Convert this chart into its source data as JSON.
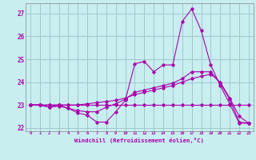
{
  "title": "",
  "xlabel": "Windchill (Refroidissement éolien,°C)",
  "ylabel": "",
  "bg_color": "#c8eef0",
  "grid_color": "#a0c8cc",
  "line_color": "#aa00aa",
  "xlim": [
    -0.5,
    23.5
  ],
  "ylim": [
    21.85,
    27.45
  ],
  "yticks": [
    22,
    23,
    24,
    25,
    26,
    27
  ],
  "xticks": [
    0,
    1,
    2,
    3,
    4,
    5,
    6,
    7,
    8,
    9,
    10,
    11,
    12,
    13,
    14,
    15,
    16,
    17,
    18,
    19,
    20,
    21,
    22,
    23
  ],
  "lines": [
    {
      "x": [
        0,
        1,
        2,
        3,
        4,
        5,
        6,
        7,
        8,
        9,
        10,
        11,
        12,
        13,
        14,
        15,
        16,
        17,
        18,
        19,
        20,
        21,
        22,
        23
      ],
      "y": [
        23.0,
        23.0,
        22.9,
        23.0,
        22.85,
        22.65,
        22.55,
        22.25,
        22.25,
        22.7,
        23.2,
        24.8,
        24.9,
        24.45,
        24.75,
        24.75,
        26.65,
        27.2,
        26.25,
        24.75,
        23.85,
        23.05,
        22.2,
        22.2
      ]
    },
    {
      "x": [
        0,
        1,
        2,
        3,
        4,
        5,
        6,
        7,
        8,
        9,
        10,
        11,
        12,
        13,
        14,
        15,
        16,
        17,
        18,
        19,
        20,
        21,
        22,
        23
      ],
      "y": [
        23.0,
        23.0,
        22.9,
        22.95,
        22.85,
        22.75,
        22.7,
        22.7,
        22.9,
        23.05,
        23.25,
        23.55,
        23.65,
        23.75,
        23.85,
        23.95,
        24.15,
        24.45,
        24.45,
        24.45,
        23.95,
        23.25,
        22.25,
        22.2
      ]
    },
    {
      "x": [
        0,
        1,
        2,
        3,
        4,
        5,
        6,
        7,
        8,
        9,
        10,
        11,
        12,
        13,
        14,
        15,
        16,
        17,
        18,
        19,
        20,
        21,
        22,
        23
      ],
      "y": [
        23.0,
        23.0,
        23.0,
        23.0,
        23.0,
        23.0,
        23.05,
        23.1,
        23.15,
        23.2,
        23.3,
        23.45,
        23.55,
        23.65,
        23.75,
        23.85,
        24.0,
        24.15,
        24.25,
        24.35,
        24.0,
        23.3,
        22.5,
        22.2
      ]
    },
    {
      "x": [
        0,
        1,
        2,
        3,
        4,
        5,
        6,
        7,
        8,
        9,
        10,
        11,
        12,
        13,
        14,
        15,
        16,
        17,
        18,
        19,
        20,
        21,
        22,
        23
      ],
      "y": [
        23.0,
        23.0,
        23.0,
        23.0,
        23.0,
        23.0,
        23.0,
        23.0,
        23.0,
        23.0,
        23.0,
        23.0,
        23.0,
        23.0,
        23.0,
        23.0,
        23.0,
        23.0,
        23.0,
        23.0,
        23.0,
        23.0,
        23.0,
        23.0
      ]
    }
  ]
}
